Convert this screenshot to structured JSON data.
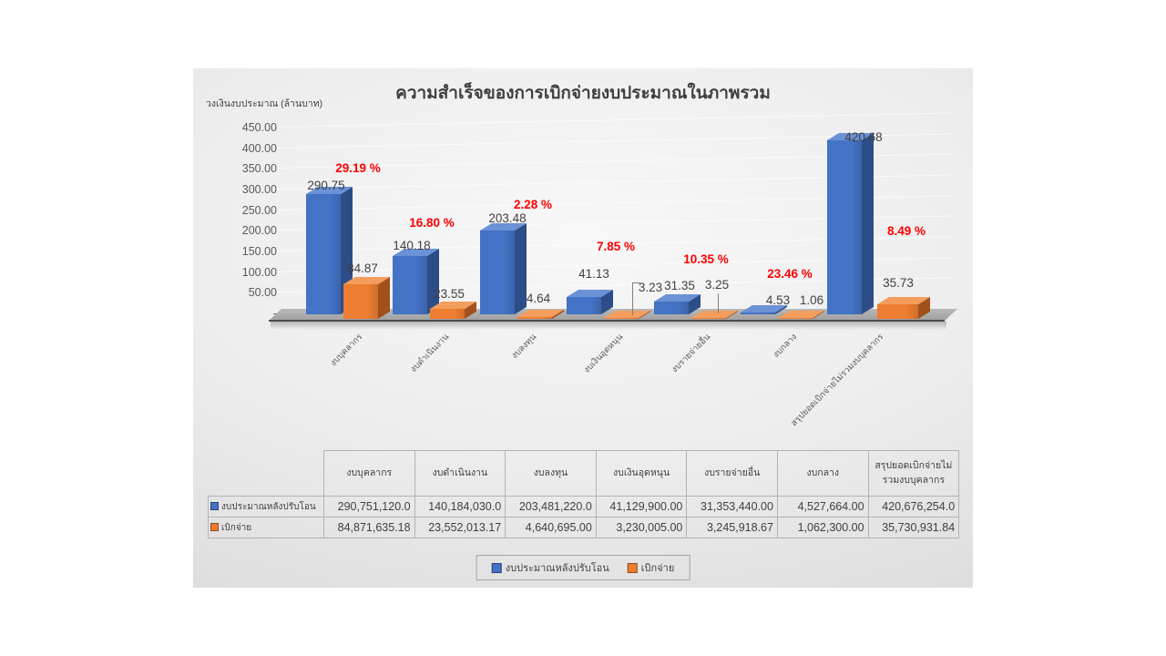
{
  "chart": {
    "title": "ความสำเร็จของการเบิกจ่ายงบประมาณในภาพรวม",
    "y_axis_title": "วงเงินงบประมาณ (ล้านบาท)",
    "y_tick_labels": [
      "450.00",
      "400.00",
      "350.00",
      "300.00",
      "250.00",
      "200.00",
      "150.00",
      "100.00",
      "50.00",
      "-"
    ]
  },
  "chart_data": {
    "type": "bar",
    "style": "3d-clustered-column",
    "title": "ความสำเร็จของการเบิกจ่ายงบประมาณในภาพรวม",
    "ylabel": "วงเงินงบประมาณ (ล้านบาท)",
    "ylim": [
      0,
      450
    ],
    "y_tick_step": 50,
    "grid": true,
    "legend_position": "bottom",
    "categories": [
      "งบบุคลากร",
      "งบดำเนินงาน",
      "งบลงทุน",
      "งบเงินอุดหนุน",
      "งบรายจ่ายอื่น",
      "งบกลาง",
      "สรุปยอดเบิกจ่ายไม่รวมงบบุคลากร"
    ],
    "series": [
      {
        "name": "งบประมาณหลังปรับโอน",
        "color": "#4472C4",
        "values": [
          290.75,
          140.18,
          203.48,
          41.13,
          31.35,
          4.53,
          420.68
        ]
      },
      {
        "name": "เบิกจ่าย",
        "color": "#ED7D31",
        "values": [
          84.87,
          23.55,
          4.64,
          3.23,
          3.25,
          1.06,
          35.73
        ]
      }
    ],
    "bar_value_labels": {
      "series1": [
        "290.75",
        "140.18",
        "203.48",
        "41.13",
        "31.35",
        "4.53",
        "420.68"
      ],
      "series2": [
        "84.87",
        "23.55",
        "4.64",
        "3.23",
        "3.25",
        "1.06",
        "35.73"
      ]
    },
    "percent_labels": [
      "29.19 %",
      "16.80 %",
      "2.28 %",
      "7.85 %",
      "10.35 %",
      "23.46 %",
      "8.49 %"
    ]
  },
  "table": {
    "columns": [
      "งบบุคลากร",
      "งบดำเนินงาน",
      "งบลงทุน",
      "งบเงินอุดหนุน",
      "งบรายจ่ายอื่น",
      "งบกลาง",
      "สรุปยอดเบิกจ่ายไม่รวมงบบุคลากร"
    ],
    "rows": [
      {
        "label": "งบประมาณหลังปรับโอน",
        "swatch_color": "#4472C4",
        "values": [
          "290,751,120.0",
          "140,184,030.0",
          "203,481,220.0",
          "41,129,900.00",
          "31,353,440.00",
          "4,527,664.00",
          "420,676,254.0"
        ]
      },
      {
        "label": "เบิกจ่าย",
        "swatch_color": "#ED7D31",
        "values": [
          "84,871,635.18",
          "23,552,013.17",
          "4,640,695.00",
          "3,230,005.00",
          "3,245,918.67",
          "1,062,300.00",
          "35,730,931.84"
        ]
      }
    ]
  },
  "colors": {
    "series1_front": "#4472C4",
    "series1_side": "#2c4d87",
    "series1_top": "#6b91d6",
    "series2_front": "#ED7D31",
    "series2_side": "#a2511c",
    "series2_top": "#f49d5c",
    "percent_text": "#FF0000",
    "value_text": "#404040",
    "axis_text": "#595959",
    "floor": "#a8a8a8",
    "card_bg": "#e8e8e8"
  }
}
